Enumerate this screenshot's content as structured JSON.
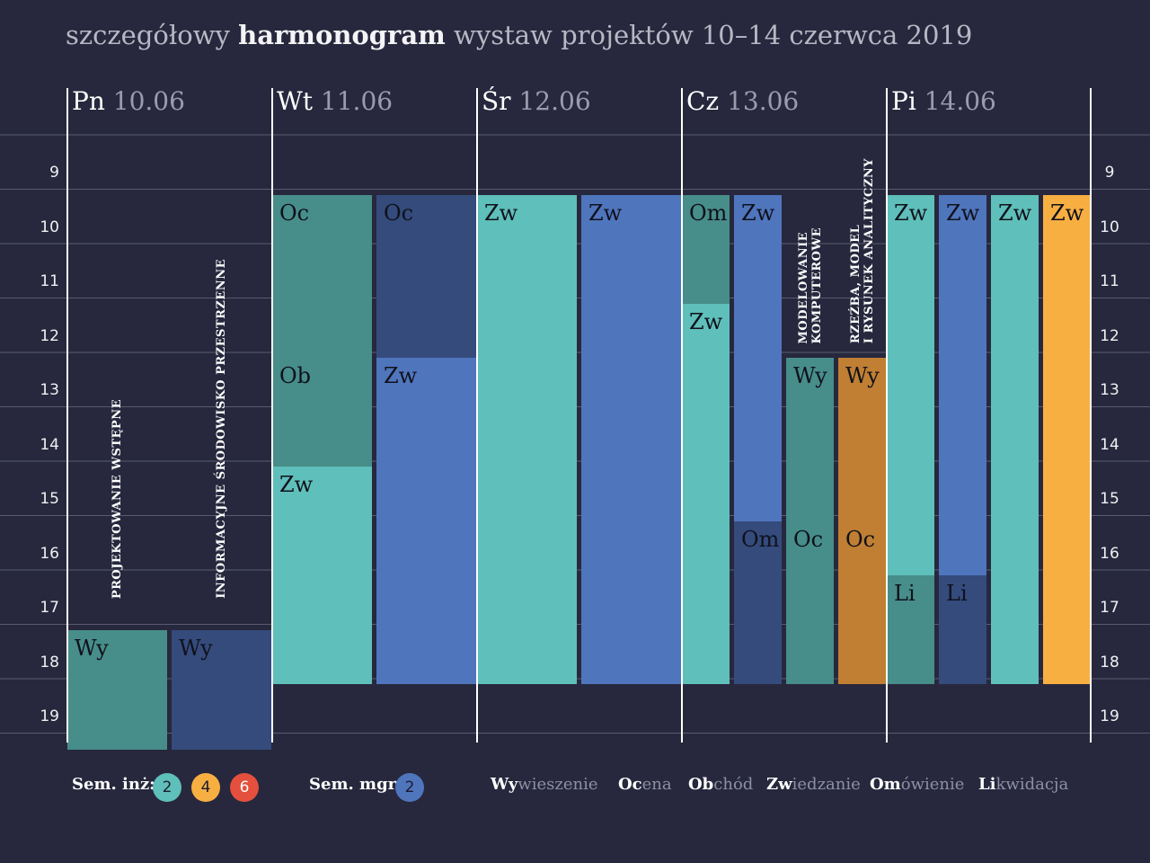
{
  "title": {
    "pre": "szczegółowy ",
    "bold": "harmonogram",
    "post": " wystaw projektów 10–14 czerwca 2019"
  },
  "chart_data": {
    "type": "timeline",
    "hours": [
      "9",
      "10",
      "11",
      "12",
      "13",
      "14",
      "15",
      "16",
      "17",
      "18",
      "19"
    ],
    "days": [
      {
        "name": "Pn",
        "date": "10.06"
      },
      {
        "name": "Wt",
        "date": "11.06"
      },
      {
        "name": "Śr",
        "date": "12.06"
      },
      {
        "name": "Cz",
        "date": "13.06"
      },
      {
        "name": "Pi",
        "date": "14.06"
      }
    ],
    "colors": {
      "sem_inz_2": "#5fbfba",
      "sem_inz_2_dark": "#478d89",
      "sem_mgr_2": "#4f75bd",
      "sem_mgr_2_dark": "#344b7c",
      "sem_inz_4": "#f8af42",
      "sem_inz_4_dark": "#c07f33",
      "sem_inz_6": "#e4503d"
    },
    "events": [
      {
        "day": 0,
        "lane": 0,
        "lanes": 2,
        "start": 17.6,
        "end": 19.8,
        "label": "Wy",
        "color": "sem_inz_2_dark"
      },
      {
        "day": 0,
        "lane": 1,
        "lanes": 2,
        "start": 17.6,
        "end": 19.8,
        "label": "Wy",
        "color": "sem_mgr_2_dark"
      },
      {
        "day": 1,
        "lane": 0,
        "lanes": 2,
        "start": 9.6,
        "end": 12.6,
        "label": "Oc",
        "color": "sem_inz_2_dark"
      },
      {
        "day": 1,
        "lane": 0,
        "lanes": 2,
        "start": 12.6,
        "end": 14.6,
        "label": "Ob",
        "color": "sem_inz_2_dark"
      },
      {
        "day": 1,
        "lane": 0,
        "lanes": 2,
        "start": 14.6,
        "end": 18.6,
        "label": "Zw",
        "color": "sem_inz_2"
      },
      {
        "day": 1,
        "lane": 1,
        "lanes": 2,
        "start": 9.6,
        "end": 12.6,
        "label": "Oc",
        "color": "sem_mgr_2_dark"
      },
      {
        "day": 1,
        "lane": 1,
        "lanes": 2,
        "start": 12.6,
        "end": 18.6,
        "label": "Zw",
        "color": "sem_mgr_2"
      },
      {
        "day": 2,
        "lane": 0,
        "lanes": 2,
        "start": 9.6,
        "end": 18.6,
        "label": "Zw",
        "color": "sem_inz_2"
      },
      {
        "day": 2,
        "lane": 1,
        "lanes": 2,
        "start": 9.6,
        "end": 18.6,
        "label": "Zw",
        "color": "sem_mgr_2"
      },
      {
        "day": 3,
        "lane": 0,
        "lanes": 4,
        "start": 9.6,
        "end": 11.6,
        "label": "Om",
        "color": "sem_inz_2_dark"
      },
      {
        "day": 3,
        "lane": 0,
        "lanes": 4,
        "start": 11.6,
        "end": 18.6,
        "label": "Zw",
        "color": "sem_inz_2"
      },
      {
        "day": 3,
        "lane": 1,
        "lanes": 4,
        "start": 9.6,
        "end": 15.6,
        "label": "Zw",
        "color": "sem_mgr_2"
      },
      {
        "day": 3,
        "lane": 1,
        "lanes": 4,
        "start": 15.6,
        "end": 18.6,
        "label": "Om",
        "color": "sem_mgr_2_dark"
      },
      {
        "day": 3,
        "lane": 2,
        "lanes": 4,
        "start": 12.6,
        "end": 18.6,
        "label": "Wy",
        "color": "sem_inz_2_dark"
      },
      {
        "day": 3,
        "lane": 2,
        "lanes": 4,
        "start": 15.6,
        "end": 18.6,
        "label": "Oc",
        "color": "sem_inz_2_dark"
      },
      {
        "day": 3,
        "lane": 3,
        "lanes": 4,
        "start": 12.6,
        "end": 18.6,
        "label": "Wy",
        "color": "sem_inz_4_dark"
      },
      {
        "day": 3,
        "lane": 3,
        "lanes": 4,
        "start": 15.6,
        "end": 18.6,
        "label": "Oc",
        "color": "sem_inz_4_dark"
      },
      {
        "day": 4,
        "lane": 0,
        "lanes": 4,
        "start": 9.6,
        "end": 16.6,
        "label": "Zw",
        "color": "sem_inz_2"
      },
      {
        "day": 4,
        "lane": 0,
        "lanes": 4,
        "start": 16.6,
        "end": 18.6,
        "label": "Li",
        "color": "sem_inz_2_dark"
      },
      {
        "day": 4,
        "lane": 1,
        "lanes": 4,
        "start": 9.6,
        "end": 16.6,
        "label": "Zw",
        "color": "sem_mgr_2"
      },
      {
        "day": 4,
        "lane": 1,
        "lanes": 4,
        "start": 16.6,
        "end": 18.6,
        "label": "Li",
        "color": "sem_mgr_2_dark"
      },
      {
        "day": 4,
        "lane": 2,
        "lanes": 4,
        "start": 9.6,
        "end": 18.6,
        "label": "Zw",
        "color": "sem_inz_2"
      },
      {
        "day": 4,
        "lane": 3,
        "lanes": 4,
        "start": 9.6,
        "end": 18.6,
        "label": "Zw",
        "color": "sem_inz_4"
      }
    ],
    "vertical_labels": [
      {
        "day": 0,
        "lane": 0,
        "lanes": 2,
        "text": "PROJEKTOWANIE WSTĘPNE"
      },
      {
        "day": 0,
        "lane": 1,
        "lanes": 2,
        "text": "INFORMACYJNE ŚRODOWISKO PRZESTRZENNE"
      },
      {
        "day": 3,
        "lane": 2,
        "lanes": 4,
        "text": "MODELOWANIE\nKOMPUTEROWE"
      },
      {
        "day": 3,
        "lane": 3,
        "lanes": 4,
        "text": "RZEŹBA, MODEL\nI RYSUNEK ANALITYCZNY"
      }
    ]
  },
  "legend": {
    "inz_label": "Sem. inż:",
    "inz_badges": [
      {
        "text": "2",
        "color": "#5fbfba"
      },
      {
        "text": "4",
        "color": "#f8af42"
      },
      {
        "text": "6",
        "color": "#e4503d"
      }
    ],
    "mgr_label": "Sem. mgr:",
    "mgr_badges": [
      {
        "text": "2",
        "color": "#4f75bd"
      }
    ],
    "abbreviations": [
      {
        "abbr": "Wy",
        "rest": "wieszenie"
      },
      {
        "abbr": "Oc",
        "rest": "ena"
      },
      {
        "abbr": "Ob",
        "rest": "chód"
      },
      {
        "abbr": "Zw",
        "rest": "iedzanie"
      },
      {
        "abbr": "Om",
        "rest": "ówienie"
      },
      {
        "abbr": "Li",
        "rest": "kwidacja"
      }
    ]
  }
}
